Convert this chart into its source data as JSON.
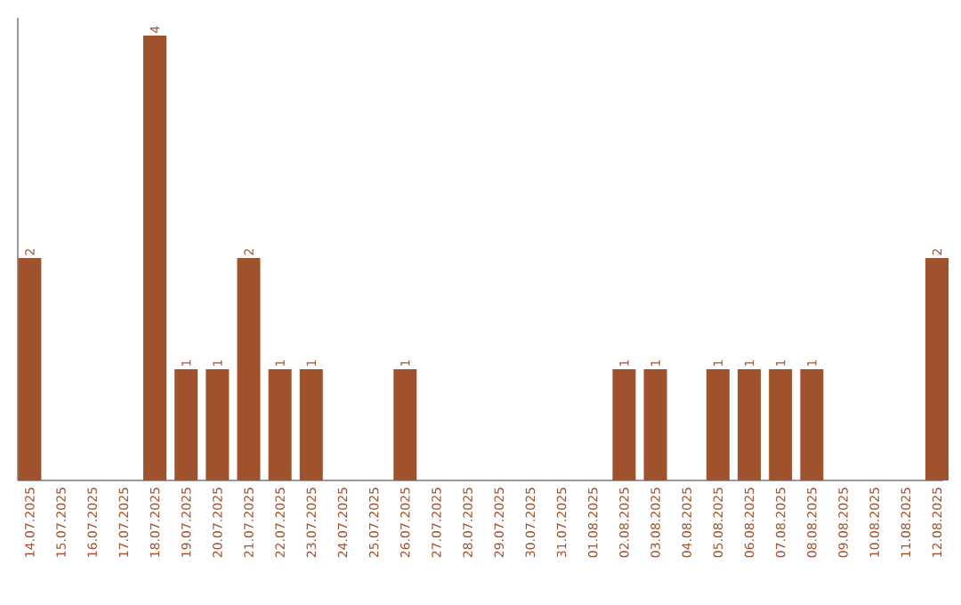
{
  "chart_data": {
    "type": "bar",
    "categories": [
      "14.07.2025",
      "15.07.2025",
      "16.07.2025",
      "17.07.2025",
      "18.07.2025",
      "19.07.2025",
      "20.07.2025",
      "21.07.2025",
      "22.07.2025",
      "23.07.2025",
      "24.07.2025",
      "25.07.2025",
      "26.07.2025",
      "27.07.2025",
      "28.07.2025",
      "29.07.2025",
      "30.07.2025",
      "31.07.2025",
      "01.08.2025",
      "02.08.2025",
      "03.08.2025",
      "04.08.2025",
      "05.08.2025",
      "06.08.2025",
      "07.08.2025",
      "08.08.2025",
      "09.08.2025",
      "10.08.2025",
      "11.08.2025",
      "12.08.2025"
    ],
    "values": [
      2,
      0,
      0,
      0,
      4,
      1,
      1,
      2,
      1,
      1,
      0,
      0,
      1,
      0,
      0,
      0,
      0,
      0,
      0,
      1,
      1,
      0,
      1,
      1,
      1,
      1,
      0,
      0,
      0,
      2
    ],
    "value_labels": [
      "2",
      null,
      null,
      null,
      "4",
      "1",
      "1",
      "2",
      "1",
      "1",
      null,
      null,
      "1",
      null,
      null,
      null,
      null,
      null,
      null,
      "1",
      "1",
      null,
      "1",
      "1",
      "1",
      "1",
      null,
      null,
      null,
      "2"
    ],
    "color": "#a0522d"
  }
}
